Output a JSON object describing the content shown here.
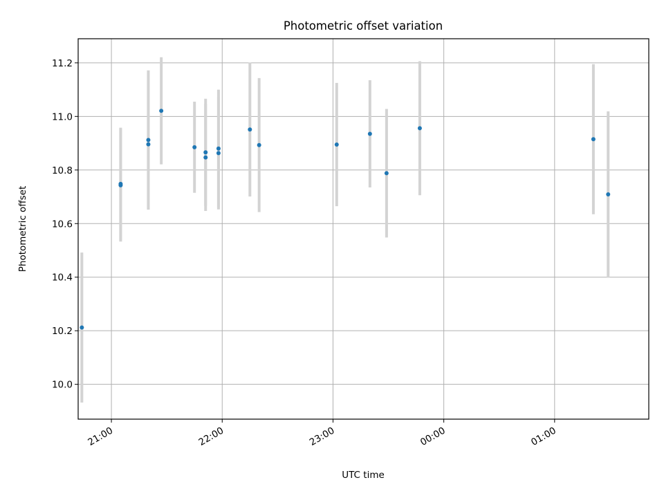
{
  "chart_data": {
    "type": "scatter",
    "title": "Photometric offset variation",
    "xlabel": "UTC time",
    "ylabel": "Photometric offset",
    "x_axis_kind": "time (HH:MM, UTC)",
    "xlim": [
      "20:42",
      "01:51"
    ],
    "ylim": [
      9.87,
      11.29
    ],
    "grid": true,
    "legend": "none",
    "colors": {
      "marker": "#1f77b4",
      "errorbar": "#d3d3d3",
      "grid": "#b0b0b0"
    },
    "x_ticks": [
      "21:00",
      "22:00",
      "23:00",
      "00:00",
      "01:00"
    ],
    "x_tick_times": [
      "21:00",
      "22:00",
      "23:00",
      "00:00",
      "01:00"
    ],
    "y_ticks": [
      "10.0",
      "10.2",
      "10.4",
      "10.6",
      "10.8",
      "11.0",
      "11.2"
    ],
    "y_tick_values": [
      10.0,
      10.2,
      10.4,
      10.6,
      10.8,
      11.0,
      11.2
    ],
    "points": [
      {
        "time": "20:44",
        "y": 10.212,
        "err": 0.28
      },
      {
        "time": "21:05",
        "y": 10.743,
        "err": 0.21
      },
      {
        "time": "21:05",
        "y": 10.748,
        "err": 0.21
      },
      {
        "time": "21:20",
        "y": 10.912,
        "err": 0.26
      },
      {
        "time": "21:20",
        "y": 10.896,
        "err": 0.24
      },
      {
        "time": "21:27",
        "y": 11.021,
        "err": 0.2
      },
      {
        "time": "21:45",
        "y": 10.885,
        "err": 0.17
      },
      {
        "time": "21:51",
        "y": 10.866,
        "err": 0.2
      },
      {
        "time": "21:51",
        "y": 10.847,
        "err": 0.2
      },
      {
        "time": "21:58",
        "y": 10.88,
        "err": 0.22
      },
      {
        "time": "21:58",
        "y": 10.863,
        "err": 0.21
      },
      {
        "time": "22:15",
        "y": 10.951,
        "err": 0.25
      },
      {
        "time": "22:20",
        "y": 10.893,
        "err": 0.25
      },
      {
        "time": "23:02",
        "y": 10.895,
        "err": 0.23
      },
      {
        "time": "23:20",
        "y": 10.935,
        "err": 0.2
      },
      {
        "time": "23:29",
        "y": 10.788,
        "err": 0.24
      },
      {
        "time": "23:47",
        "y": 10.956,
        "err": 0.25
      },
      {
        "time": "01:21",
        "y": 10.915,
        "err": 0.28
      },
      {
        "time": "01:29",
        "y": 10.709,
        "err": 0.31
      }
    ]
  }
}
